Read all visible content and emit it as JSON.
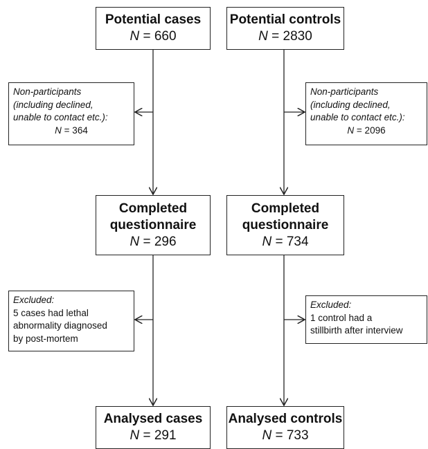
{
  "left": {
    "potential": {
      "title": "Potential cases",
      "n_label": "N",
      "n_value": "= 660"
    },
    "nonparticipants": {
      "lines": [
        "Non-participants",
        "(including declined,",
        "unable to contact etc.):"
      ],
      "n_label": "N",
      "n_value": "= 364"
    },
    "completed": {
      "title_line1": "Completed",
      "title_line2": "questionnaire",
      "n_label": "N",
      "n_value": "= 296"
    },
    "excluded": {
      "heading": "Excluded:",
      "lines": [
        "5 cases had lethal",
        "abnormality diagnosed",
        "by post-mortem"
      ]
    },
    "analysed": {
      "title": "Analysed cases",
      "n_label": "N",
      "n_value": "= 291"
    }
  },
  "right": {
    "potential": {
      "title": "Potential controls",
      "n_label": "N",
      "n_value": "= 2830"
    },
    "nonparticipants": {
      "lines": [
        "Non-participants",
        "(including declined,",
        "unable to contact etc.):"
      ],
      "n_label": "N",
      "n_value": "= 2096"
    },
    "completed": {
      "title_line1": "Completed",
      "title_line2": "questionnaire",
      "n_label": "N",
      "n_value": "= 734"
    },
    "excluded": {
      "heading": "Excluded:",
      "lines": [
        "1 control had a",
        "stillbirth after interview"
      ]
    },
    "analysed": {
      "title": "Analysed controls",
      "n_label": "N",
      "n_value": "= 733"
    }
  }
}
